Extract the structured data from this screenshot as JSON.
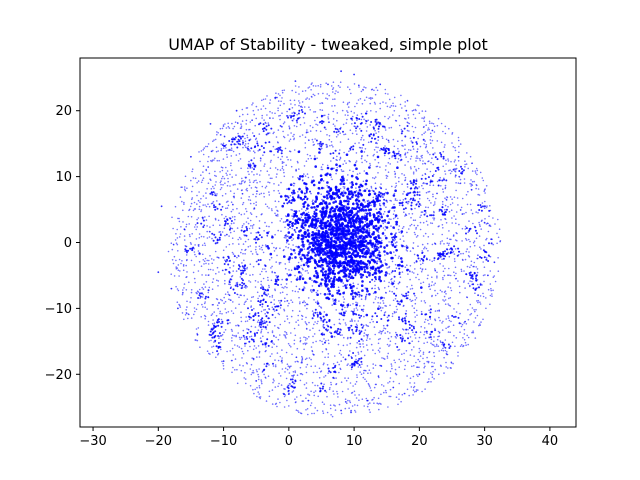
{
  "chart_data": {
    "type": "scatter",
    "title": "UMAP of Stability - tweaked, simple plot",
    "xlabel": "",
    "ylabel": "",
    "xlim": [
      -32,
      44
    ],
    "ylim": [
      -28,
      28
    ],
    "xticks": [
      -30,
      -20,
      -10,
      0,
      10,
      20,
      30,
      40
    ],
    "yticks": [
      -20,
      -10,
      0,
      10,
      20
    ],
    "xtick_labels": [
      "−30",
      "−20",
      "−10",
      "0",
      "10",
      "20",
      "30",
      "40"
    ],
    "ytick_labels": [
      "−20",
      "−10",
      "0",
      "10",
      "20"
    ],
    "grid": false,
    "legend": "none",
    "marker_color": "#0000ff",
    "point_cloud": {
      "center": [
        7,
        -1
      ],
      "x_range": [
        -20,
        32
      ],
      "y_range": [
        -26,
        26
      ],
      "dense_core_center": [
        8,
        1
      ],
      "dense_core_range_x": [
        0,
        16
      ],
      "dense_core_range_y": [
        -9,
        10
      ]
    },
    "points": [
      [
        -20,
        -4.5
      ],
      [
        -19.5,
        5.5
      ],
      [
        -18,
        -7
      ],
      [
        -17,
        -10
      ],
      [
        -16,
        2
      ],
      [
        -15,
        13
      ],
      [
        -14,
        -14
      ],
      [
        -12,
        18
      ],
      [
        -10,
        -18
      ],
      [
        -8,
        20
      ],
      [
        -5,
        -21
      ],
      [
        -2,
        22
      ],
      [
        0,
        -23
      ],
      [
        1,
        24.5
      ],
      [
        3,
        -24
      ],
      [
        6,
        24
      ],
      [
        8,
        26
      ],
      [
        8,
        -25.5
      ],
      [
        10,
        25.5
      ],
      [
        12,
        -24
      ],
      [
        14,
        24
      ],
      [
        16,
        -22
      ],
      [
        18,
        20
      ],
      [
        20,
        -20
      ],
      [
        22,
        17
      ],
      [
        24,
        -16
      ],
      [
        26,
        13
      ],
      [
        27,
        -12
      ],
      [
        28,
        8
      ],
      [
        29,
        -8
      ],
      [
        30,
        3
      ],
      [
        30.5,
        -5
      ],
      [
        31,
        0.5
      ],
      [
        31.5,
        -3
      ]
    ]
  }
}
